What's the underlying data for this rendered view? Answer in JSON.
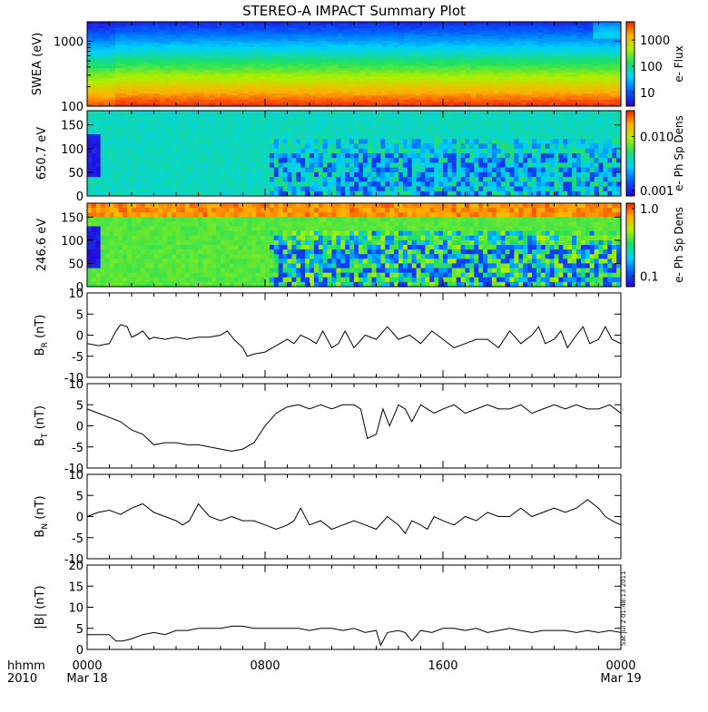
{
  "title": "STEREO-A IMPACT Summary Plot",
  "footer": {
    "hhmm": "hhmm",
    "year": "2010",
    "x_tick_labels": [
      "0000",
      "0800",
      "1600",
      "0000"
    ],
    "x_date_labels": [
      "Mar 18",
      "",
      "",
      "Mar 19"
    ],
    "timestamp": "Sat Jul  2 01:48:13 2011"
  },
  "colors": {
    "background": "#ffffff",
    "line": "#000000",
    "spectrogram_low": "#2a00e0",
    "spectrogram_high": "#f04000"
  },
  "chart_data": [
    {
      "type": "heatmap",
      "id": "swea",
      "ylabel": "SWEA (eV)",
      "yscale": "log",
      "ylim": [
        100,
        2000
      ],
      "yticks": [
        100,
        1000
      ],
      "ytick_labels": [
        "100",
        "1000"
      ],
      "colorbar": {
        "label": "e- Flux",
        "scale": "log",
        "ticks": [
          10,
          100,
          1000
        ],
        "tick_labels": [
          "10",
          "100",
          "1000"
        ],
        "range": [
          3,
          5000
        ]
      },
      "time_range_hours": [
        0,
        24
      ],
      "description_levels": [
        {
          "energy_ev": 1800,
          "flux": 8
        },
        {
          "energy_ev": 1000,
          "flux": 60
        },
        {
          "energy_ev": 500,
          "flux": 300
        },
        {
          "energy_ev": 250,
          "flux": 1500
        },
        {
          "energy_ev": 120,
          "flux": 3500
        }
      ]
    },
    {
      "type": "heatmap",
      "id": "pad650",
      "ylabel": "650.7 eV",
      "ylim": [
        0,
        180
      ],
      "yticks": [
        0,
        50,
        100,
        150
      ],
      "ytick_labels": [
        "0",
        "50",
        "100",
        "150"
      ],
      "colorbar": {
        "label": "e- Ph Sp Dens",
        "scale": "log",
        "ticks": [
          0.001,
          0.01
        ],
        "tick_labels": [
          "0.001",
          "0.010"
        ],
        "range": [
          0.0008,
          0.03
        ]
      }
    },
    {
      "type": "heatmap",
      "id": "pad246",
      "ylabel": "246.6 eV",
      "ylim": [
        0,
        180
      ],
      "yticks": [
        0,
        50,
        100,
        150
      ],
      "ytick_labels": [
        "0",
        "50",
        "100",
        "150"
      ],
      "colorbar": {
        "label": "e- Ph Sp Dens",
        "scale": "log",
        "ticks": [
          0.1,
          1.0
        ],
        "tick_labels": [
          "0.1",
          "1.0"
        ],
        "range": [
          0.07,
          1.2
        ]
      }
    },
    {
      "type": "line",
      "id": "br",
      "ylabel_main": "B",
      "ylabel_sub": "R",
      "ylabel_unit": " (nT)",
      "ylim": [
        -10,
        10
      ],
      "yticks": [
        -10,
        -5,
        0,
        5,
        10
      ],
      "ytick_labels": [
        "-10",
        "-5",
        "0",
        "5",
        "10"
      ],
      "x_hours": [
        0,
        0.5,
        1,
        1.3,
        1.5,
        1.8,
        2,
        2.2,
        2.5,
        2.8,
        3,
        3.5,
        4,
        4.5,
        5,
        5.5,
        6,
        6.3,
        6.6,
        7,
        7.2,
        7.5,
        8,
        8.5,
        9,
        9.3,
        9.6,
        10,
        10.3,
        10.6,
        11,
        11.3,
        11.6,
        12,
        12.5,
        13,
        13.5,
        14,
        14.5,
        15,
        15.5,
        16,
        16.5,
        17,
        17.5,
        18,
        18.5,
        19,
        19.5,
        20,
        20.3,
        20.6,
        21,
        21.3,
        21.6,
        22,
        22.3,
        22.6,
        23,
        23.3,
        23.6,
        24
      ],
      "values": [
        -2,
        -2.5,
        -2,
        1,
        2.5,
        2,
        -0.5,
        0,
        1,
        -1,
        -0.5,
        -1,
        -0.5,
        -1,
        -0.5,
        -0.5,
        0,
        1,
        -1,
        -3,
        -5,
        -4.5,
        -4,
        -2.5,
        -1,
        -2,
        0,
        -1,
        -2,
        1,
        -3,
        -2,
        1,
        -3,
        0,
        -1,
        2,
        -1,
        0,
        -2,
        1,
        -1,
        -3,
        -2,
        -1,
        -1,
        -3,
        1,
        -2,
        0,
        2,
        -2,
        -1,
        1,
        -3,
        0,
        2,
        -2,
        -1,
        2,
        -1,
        -2
      ]
    },
    {
      "type": "line",
      "id": "bt",
      "ylabel_main": "B",
      "ylabel_sub": "T",
      "ylabel_unit": " (nT)",
      "ylim": [
        -10,
        10
      ],
      "yticks": [
        -10,
        -5,
        0,
        5,
        10
      ],
      "ytick_labels": [
        "-10",
        "-5",
        "0",
        "5",
        "10"
      ],
      "x_hours": [
        0,
        0.5,
        1,
        1.5,
        2,
        2.5,
        3,
        3.5,
        4,
        4.5,
        5,
        5.5,
        6,
        6.5,
        7,
        7.5,
        8,
        8.5,
        9,
        9.5,
        10,
        10.5,
        11,
        11.5,
        12,
        12.3,
        12.6,
        13,
        13.3,
        13.6,
        14,
        14.3,
        14.6,
        15,
        15.3,
        15.6,
        16,
        16.5,
        17,
        17.5,
        18,
        18.5,
        19,
        19.5,
        20,
        20.5,
        21,
        21.5,
        22,
        22.5,
        23,
        23.5,
        24
      ],
      "values": [
        4,
        3,
        2,
        1,
        -1,
        -2,
        -4.5,
        -4,
        -4,
        -4.5,
        -4.5,
        -5,
        -5.5,
        -6,
        -5.5,
        -4,
        0,
        3,
        4.5,
        5,
        4,
        5,
        4,
        5,
        5,
        4,
        -3,
        -2,
        4,
        0,
        5,
        4,
        1,
        5,
        4,
        3,
        4,
        5,
        3,
        4,
        5,
        4,
        4,
        5,
        3,
        4,
        5,
        4,
        5,
        4,
        4,
        5,
        3
      ]
    },
    {
      "type": "line",
      "id": "bn",
      "ylabel_main": "B",
      "ylabel_sub": "N",
      "ylabel_unit": " (nT)",
      "ylim": [
        -10,
        10
      ],
      "yticks": [
        -10,
        -5,
        0,
        5,
        10
      ],
      "ytick_labels": [
        "-10",
        "-5",
        "0",
        "5",
        "10"
      ],
      "x_hours": [
        0,
        0.5,
        1,
        1.5,
        2,
        2.5,
        3,
        3.5,
        4,
        4.3,
        4.6,
        5,
        5.5,
        6,
        6.5,
        7,
        7.5,
        8,
        8.5,
        9,
        9.3,
        9.6,
        10,
        10.5,
        11,
        11.5,
        12,
        12.5,
        13,
        13.5,
        14,
        14.3,
        14.6,
        15,
        15.3,
        15.6,
        16,
        16.5,
        17,
        17.5,
        18,
        18.5,
        19,
        19.5,
        20,
        20.5,
        21,
        21.5,
        22,
        22.5,
        23,
        23.3,
        23.6,
        24
      ],
      "values": [
        0,
        1,
        1.5,
        0.5,
        2,
        3,
        1,
        0,
        -1,
        -2,
        -1,
        3,
        0,
        -1,
        0,
        -1,
        -1,
        -2,
        -3,
        -2,
        -1,
        2,
        -2,
        -1,
        -3,
        -2,
        -1,
        -2,
        -3,
        0,
        -2,
        -4,
        -1,
        -2,
        -3,
        0,
        -1,
        -2,
        0,
        -1,
        1,
        0,
        0,
        2,
        0,
        1,
        2,
        1,
        2,
        4,
        2,
        0,
        -1,
        -2
      ]
    },
    {
      "type": "line",
      "id": "bmag",
      "ylabel_main": "|B| (nT)",
      "ylim": [
        0,
        20
      ],
      "yticks": [
        0,
        5,
        10,
        15,
        20
      ],
      "ytick_labels": [
        "0",
        "5",
        "10",
        "15",
        "20"
      ],
      "x_hours": [
        0,
        0.5,
        1,
        1.3,
        1.6,
        2,
        2.5,
        3,
        3.5,
        4,
        4.5,
        5,
        5.5,
        6,
        6.5,
        7,
        7.5,
        8,
        8.5,
        9,
        9.5,
        10,
        10.5,
        11,
        11.5,
        12,
        12.5,
        13,
        13.2,
        13.5,
        14,
        14.3,
        14.6,
        15,
        15.5,
        16,
        16.5,
        17,
        17.5,
        18,
        18.5,
        19,
        19.5,
        20,
        20.5,
        21,
        21.5,
        22,
        22.5,
        23,
        23.5,
        24
      ],
      "values": [
        3.5,
        3.5,
        3.5,
        2,
        2,
        2.5,
        3.5,
        4,
        3.5,
        4.5,
        4.5,
        5,
        5,
        5,
        5.5,
        5.5,
        5,
        5,
        5,
        5,
        5,
        4.5,
        5,
        5,
        4.5,
        5,
        4,
        4.5,
        1,
        4,
        4.5,
        4,
        2,
        4.5,
        4,
        5,
        5,
        4.5,
        5,
        4,
        4.5,
        5,
        4.5,
        4,
        4.5,
        4.5,
        4.5,
        4,
        4.5,
        4,
        4.5,
        4
      ]
    }
  ]
}
